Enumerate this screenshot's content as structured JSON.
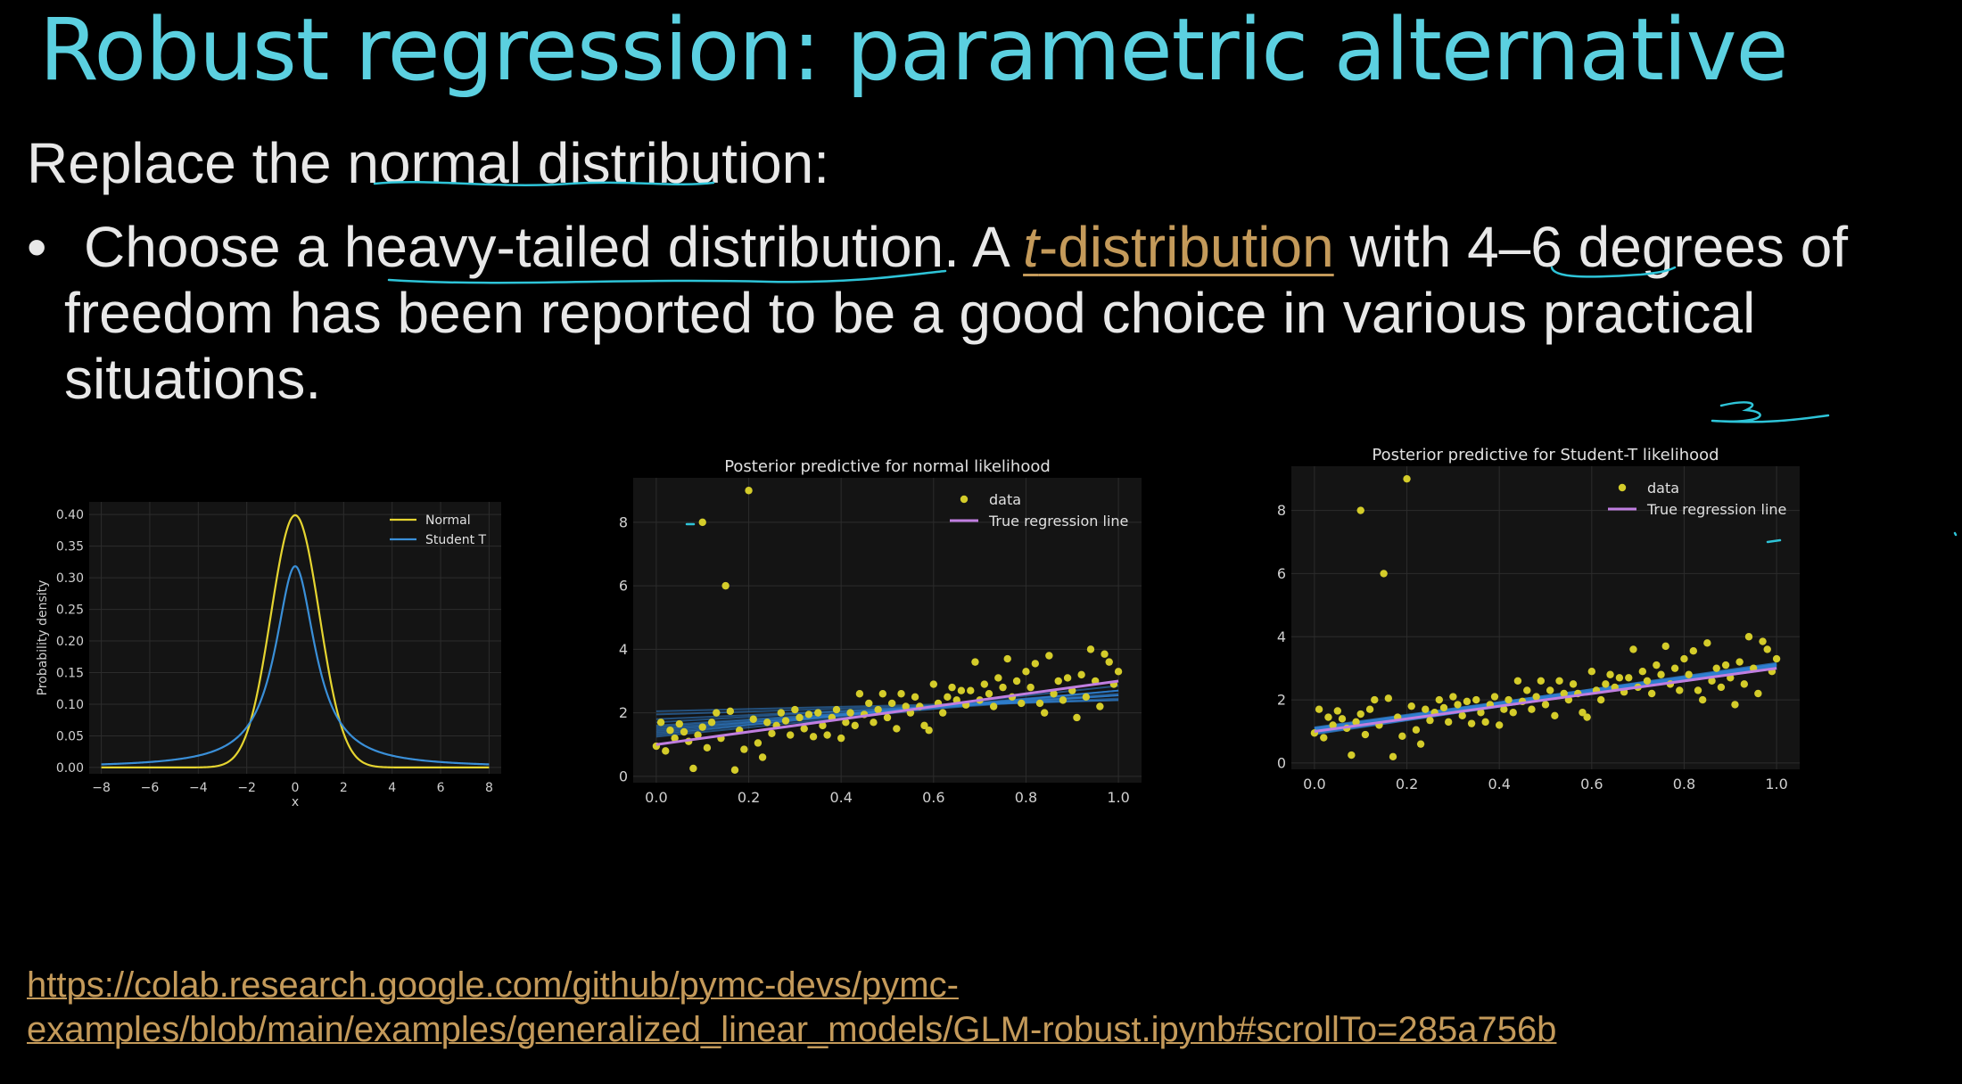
{
  "slide": {
    "title": "Robust regression: parametric alternative",
    "intro": "Replace the normal distribution:",
    "bullet_marker": "•",
    "bullet_pre": "Choose a heavy-tailed distribution. A ",
    "bullet_link_italic": "t",
    "bullet_link_rest": "-distribution",
    "bullet_post": " with 4–6 degrees of freedom has been reported to be a good choice in various practical situations.",
    "link_line1": "https://colab.research.google.com/github/pymc-devs/pymc-",
    "link_line2": "examples/blob/main/examples/generalized_linear_models/GLM-robust.ipynb#scrollTo=285a756b",
    "annotation_color": "#2ec4d8",
    "link_color": "#c49a5a",
    "title_color": "#5bd0e0"
  },
  "chart_data": [
    {
      "type": "line",
      "title": "",
      "xlabel": "x",
      "ylabel": "Probability density",
      "xlim": [
        -8.5,
        8.5
      ],
      "ylim": [
        -0.01,
        0.42
      ],
      "xticks": [
        -8,
        -6,
        -4,
        -2,
        0,
        2,
        4,
        6,
        8
      ],
      "xtick_labels": [
        "−8",
        "−6",
        "−4",
        "−2",
        "0",
        "2",
        "4",
        "6",
        "8"
      ],
      "yticks": [
        0.0,
        0.05,
        0.1,
        0.15,
        0.2,
        0.25,
        0.3,
        0.35,
        0.4
      ],
      "ytick_labels": [
        "0.00",
        "0.05",
        "0.10",
        "0.15",
        "0.20",
        "0.25",
        "0.30",
        "0.35",
        "0.40"
      ],
      "legend_position": "top-right",
      "grid": true,
      "series": [
        {
          "name": "Normal",
          "color": "#e5d430",
          "distribution": "normal",
          "mean": 0,
          "sd": 1
        },
        {
          "name": "Student T",
          "color": "#3a8fd8",
          "distribution": "student_t",
          "df": 1,
          "loc": 0,
          "scale": 1
        }
      ]
    },
    {
      "type": "scatter",
      "title": "Posterior predictive for normal likelihood",
      "xlabel": "",
      "ylabel": "",
      "xlim": [
        -0.05,
        1.05
      ],
      "ylim": [
        -0.2,
        9.4
      ],
      "xticks": [
        0.0,
        0.2,
        0.4,
        0.6,
        0.8,
        1.0
      ],
      "xtick_labels": [
        "0.0",
        "0.2",
        "0.4",
        "0.6",
        "0.8",
        "1.0"
      ],
      "yticks": [
        0,
        2,
        4,
        6,
        8
      ],
      "ytick_labels": [
        "0",
        "2",
        "4",
        "6",
        "8"
      ],
      "legend_position": "top-right",
      "grid": true,
      "legend": [
        {
          "name": "data",
          "kind": "point",
          "color": "#d4cc2a"
        },
        {
          "name": "True regression line",
          "kind": "line",
          "color": "#c07ee0"
        }
      ],
      "true_line": {
        "intercept": 1.0,
        "slope": 2.0,
        "color": "#c07ee0"
      },
      "posterior_lines": [
        [
          1.35,
          1.35
        ],
        [
          1.45,
          1.25
        ],
        [
          1.55,
          1.05
        ],
        [
          1.7,
          0.85
        ],
        [
          1.25,
          1.45
        ],
        [
          1.8,
          0.65
        ],
        [
          1.5,
          1.05
        ],
        [
          1.3,
          1.55
        ],
        [
          1.95,
          0.45
        ],
        [
          1.6,
          0.95
        ],
        [
          1.4,
          1.3
        ],
        [
          2.05,
          0.35
        ]
      ],
      "outliers": [
        [
          0.1,
          8.0
        ],
        [
          0.2,
          9.0
        ],
        [
          0.15,
          6.0
        ]
      ]
    },
    {
      "type": "scatter",
      "title": "Posterior predictive for Student-T likelihood",
      "xlabel": "",
      "ylabel": "",
      "xlim": [
        -0.05,
        1.05
      ],
      "ylim": [
        -0.2,
        9.4
      ],
      "xticks": [
        0.0,
        0.2,
        0.4,
        0.6,
        0.8,
        1.0
      ],
      "xtick_labels": [
        "0.0",
        "0.2",
        "0.4",
        "0.6",
        "0.8",
        "1.0"
      ],
      "yticks": [
        0,
        2,
        4,
        6,
        8
      ],
      "ytick_labels": [
        "0",
        "2",
        "4",
        "6",
        "8"
      ],
      "legend_position": "top-right",
      "grid": true,
      "legend": [
        {
          "name": "data",
          "kind": "point",
          "color": "#d4cc2a"
        },
        {
          "name": "True regression line",
          "kind": "line",
          "color": "#c07ee0"
        }
      ],
      "true_line": {
        "intercept": 1.0,
        "slope": 2.0,
        "color": "#c07ee0"
      },
      "posterior_lines": [
        [
          1.0,
          2.0
        ],
        [
          1.05,
          2.05
        ],
        [
          0.95,
          2.1
        ],
        [
          1.1,
          1.95
        ],
        [
          0.98,
          2.15
        ],
        [
          1.08,
          2.08
        ],
        [
          1.02,
          1.98
        ],
        [
          0.92,
          2.18
        ],
        [
          1.12,
          2.0
        ],
        [
          1.0,
          2.12
        ]
      ],
      "outliers": [
        [
          0.1,
          8.0
        ],
        [
          0.2,
          9.0
        ],
        [
          0.15,
          6.0
        ]
      ]
    }
  ],
  "scatter_points": [
    [
      0.0,
      0.95
    ],
    [
      0.01,
      1.7
    ],
    [
      0.02,
      0.8
    ],
    [
      0.03,
      1.45
    ],
    [
      0.04,
      1.2
    ],
    [
      0.05,
      1.65
    ],
    [
      0.06,
      1.4
    ],
    [
      0.07,
      1.1
    ],
    [
      0.08,
      0.25
    ],
    [
      0.09,
      1.3
    ],
    [
      0.1,
      1.55
    ],
    [
      0.11,
      0.9
    ],
    [
      0.12,
      1.7
    ],
    [
      0.13,
      2.0
    ],
    [
      0.14,
      1.2
    ],
    [
      0.16,
      2.05
    ],
    [
      0.17,
      0.2
    ],
    [
      0.18,
      1.45
    ],
    [
      0.19,
      0.85
    ],
    [
      0.21,
      1.8
    ],
    [
      0.22,
      1.05
    ],
    [
      0.23,
      0.6
    ],
    [
      0.24,
      1.7
    ],
    [
      0.25,
      1.35
    ],
    [
      0.26,
      1.6
    ],
    [
      0.27,
      2.0
    ],
    [
      0.28,
      1.75
    ],
    [
      0.29,
      1.3
    ],
    [
      0.3,
      2.1
    ],
    [
      0.31,
      1.85
    ],
    [
      0.32,
      1.5
    ],
    [
      0.33,
      1.95
    ],
    [
      0.34,
      1.25
    ],
    [
      0.35,
      2.0
    ],
    [
      0.36,
      1.6
    ],
    [
      0.37,
      1.3
    ],
    [
      0.38,
      1.85
    ],
    [
      0.39,
      2.1
    ],
    [
      0.4,
      1.2
    ],
    [
      0.41,
      1.7
    ],
    [
      0.42,
      2.0
    ],
    [
      0.43,
      1.6
    ],
    [
      0.44,
      2.6
    ],
    [
      0.45,
      1.95
    ],
    [
      0.46,
      2.3
    ],
    [
      0.47,
      1.7
    ],
    [
      0.48,
      2.1
    ],
    [
      0.49,
      2.6
    ],
    [
      0.5,
      1.85
    ],
    [
      0.51,
      2.3
    ],
    [
      0.52,
      1.5
    ],
    [
      0.53,
      2.6
    ],
    [
      0.54,
      2.2
    ],
    [
      0.55,
      2.0
    ],
    [
      0.56,
      2.5
    ],
    [
      0.57,
      2.2
    ],
    [
      0.58,
      1.6
    ],
    [
      0.59,
      1.45
    ],
    [
      0.6,
      2.9
    ],
    [
      0.61,
      2.3
    ],
    [
      0.62,
      2.0
    ],
    [
      0.63,
      2.5
    ],
    [
      0.64,
      2.8
    ],
    [
      0.65,
      2.4
    ],
    [
      0.66,
      2.7
    ],
    [
      0.67,
      2.25
    ],
    [
      0.68,
      2.7
    ],
    [
      0.69,
      3.6
    ],
    [
      0.7,
      2.4
    ],
    [
      0.71,
      2.9
    ],
    [
      0.72,
      2.6
    ],
    [
      0.73,
      2.2
    ],
    [
      0.74,
      3.1
    ],
    [
      0.75,
      2.8
    ],
    [
      0.76,
      3.7
    ],
    [
      0.77,
      2.5
    ],
    [
      0.78,
      3.0
    ],
    [
      0.79,
      2.3
    ],
    [
      0.8,
      3.3
    ],
    [
      0.81,
      2.8
    ],
    [
      0.82,
      3.55
    ],
    [
      0.83,
      2.3
    ],
    [
      0.84,
      2.0
    ],
    [
      0.85,
      3.8
    ],
    [
      0.86,
      2.6
    ],
    [
      0.87,
      3.0
    ],
    [
      0.88,
      2.4
    ],
    [
      0.89,
      3.1
    ],
    [
      0.9,
      2.7
    ],
    [
      0.91,
      1.85
    ],
    [
      0.92,
      3.2
    ],
    [
      0.93,
      2.5
    ],
    [
      0.94,
      4.0
    ],
    [
      0.95,
      3.0
    ],
    [
      0.96,
      2.2
    ],
    [
      0.97,
      3.85
    ],
    [
      0.98,
      3.6
    ],
    [
      0.99,
      2.9
    ],
    [
      1.0,
      3.3
    ]
  ]
}
